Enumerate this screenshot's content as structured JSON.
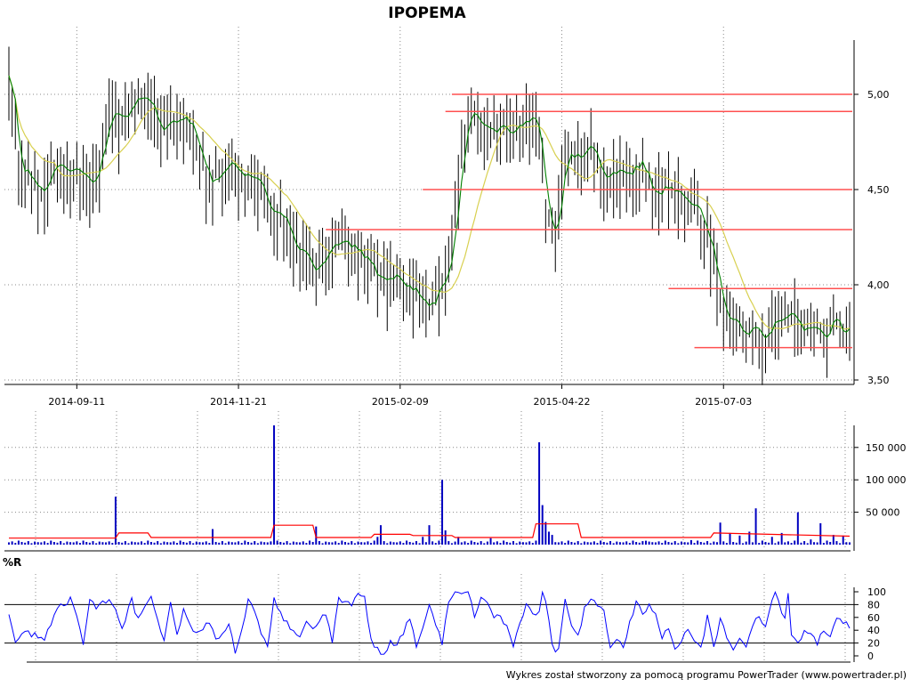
{
  "title": "IPOPEMA",
  "footer": "Wykres został stworzony za pomocą programu PowerTrader (www.powertrader.pl)",
  "colors": {
    "background": "#ffffff",
    "price_bar": "#000000",
    "ma_short": "#008000",
    "ma_long": "#d8d050",
    "level_line": "#ff5050",
    "volume_bar": "#0000c0",
    "volume_avg": "#ff0000",
    "wr_line": "#0000ff",
    "grid": "#888888",
    "axis": "#000000"
  },
  "chart_data": [
    {
      "panel": "price",
      "type": "ohlc",
      "title": "IPOPEMA",
      "x_ticks": [
        "2014-09-11",
        "2014-11-21",
        "2015-02-09",
        "2015-04-22",
        "2015-07-03"
      ],
      "x_tick_bar_index": [
        21,
        71,
        121,
        171,
        221
      ],
      "y_ticks": [
        "3,50",
        "4,00",
        "4,50",
        "5,00"
      ],
      "y_tick_values": [
        3.5,
        4.0,
        4.5,
        5.0
      ],
      "ylim": [
        3.5,
        5.3
      ],
      "grid": true,
      "anchors": [
        [
          0,
          5.1
        ],
        [
          1,
          4.95
        ],
        [
          3,
          4.62
        ],
        [
          6,
          4.56
        ],
        [
          10,
          4.48
        ],
        [
          14,
          4.58
        ],
        [
          20,
          4.58
        ],
        [
          25,
          4.55
        ],
        [
          28,
          4.65
        ],
        [
          31,
          4.92
        ],
        [
          34,
          4.82
        ],
        [
          38,
          4.95
        ],
        [
          42,
          4.95
        ],
        [
          46,
          4.85
        ],
        [
          50,
          4.86
        ],
        [
          55,
          4.88
        ],
        [
          58,
          4.75
        ],
        [
          62,
          4.55
        ],
        [
          66,
          4.62
        ],
        [
          70,
          4.6
        ],
        [
          74,
          4.55
        ],
        [
          78,
          4.5
        ],
        [
          82,
          4.38
        ],
        [
          86,
          4.32
        ],
        [
          88,
          4.22
        ],
        [
          92,
          4.15
        ],
        [
          96,
          4.1
        ],
        [
          100,
          4.22
        ],
        [
          105,
          4.22
        ],
        [
          110,
          4.14
        ],
        [
          115,
          4.04
        ],
        [
          120,
          4.0
        ],
        [
          124,
          3.98
        ],
        [
          128,
          3.92
        ],
        [
          131,
          3.88
        ],
        [
          134,
          4.0
        ],
        [
          137,
          4.2
        ],
        [
          140,
          4.72
        ],
        [
          142,
          4.88
        ],
        [
          145,
          4.88
        ],
        [
          150,
          4.82
        ],
        [
          155,
          4.82
        ],
        [
          160,
          4.88
        ],
        [
          163,
          4.88
        ],
        [
          166,
          4.4
        ],
        [
          169,
          4.28
        ],
        [
          172,
          4.65
        ],
        [
          176,
          4.72
        ],
        [
          180,
          4.75
        ],
        [
          184,
          4.55
        ],
        [
          188,
          4.58
        ],
        [
          192,
          4.58
        ],
        [
          196,
          4.62
        ],
        [
          200,
          4.48
        ],
        [
          204,
          4.55
        ],
        [
          208,
          4.4
        ],
        [
          212,
          4.45
        ],
        [
          215,
          4.28
        ],
        [
          218,
          4.18
        ],
        [
          220,
          3.92
        ],
        [
          223,
          3.82
        ],
        [
          226,
          3.75
        ],
        [
          230,
          3.75
        ],
        [
          233,
          3.68
        ],
        [
          236,
          3.8
        ],
        [
          240,
          3.82
        ],
        [
          244,
          3.8
        ],
        [
          248,
          3.78
        ],
        [
          252,
          3.75
        ],
        [
          255,
          3.8
        ],
        [
          258,
          3.76
        ],
        [
          260,
          3.82
        ]
      ],
      "horizontal_levels": [
        {
          "value": 5.0,
          "from_bar": 137
        },
        {
          "value": 4.91,
          "from_bar": 135
        },
        {
          "value": 4.5,
          "from_bar": 128
        },
        {
          "value": 4.29,
          "from_bar": 98
        },
        {
          "value": 3.98,
          "from_bar": 204
        },
        {
          "value": 3.67,
          "from_bar": 212
        }
      ],
      "moving_averages": [
        {
          "window": 3,
          "color_key": "ma_short"
        },
        {
          "window": 15,
          "color_key": "ma_long"
        }
      ]
    },
    {
      "panel": "volume",
      "type": "bar",
      "y_ticks": [
        "50 000",
        "100 000",
        "150 000"
      ],
      "y_tick_values": [
        50000,
        100000,
        150000
      ],
      "ylim": [
        0,
        180000
      ],
      "grid": true,
      "baseline_pattern": [
        3500,
        5000,
        2600,
        6200,
        4100,
        3000,
        5400,
        2200,
        4700,
        3800
      ],
      "spikes": [
        [
          33,
          74000
        ],
        [
          63,
          24000
        ],
        [
          82,
          184000
        ],
        [
          95,
          28000
        ],
        [
          114,
          12000
        ],
        [
          115,
          30000
        ],
        [
          128,
          12000
        ],
        [
          130,
          30000
        ],
        [
          134,
          100000
        ],
        [
          135,
          22000
        ],
        [
          139,
          12000
        ],
        [
          149,
          10000
        ],
        [
          164,
          158000
        ],
        [
          165,
          61000
        ],
        [
          166,
          35000
        ],
        [
          167,
          20000
        ],
        [
          168,
          15000
        ],
        [
          197,
          6000
        ],
        [
          211,
          7000
        ],
        [
          220,
          34000
        ],
        [
          223,
          18000
        ],
        [
          226,
          14000
        ],
        [
          229,
          20000
        ],
        [
          231,
          56000
        ],
        [
          236,
          12000
        ],
        [
          239,
          18000
        ],
        [
          244,
          50000
        ],
        [
          248,
          8000
        ],
        [
          251,
          33000
        ],
        [
          255,
          15000
        ],
        [
          258,
          14000
        ]
      ],
      "average_line": [
        [
          0,
          10000
        ],
        [
          33,
          10000
        ],
        [
          34,
          18000
        ],
        [
          43,
          18000
        ],
        [
          44,
          11000
        ],
        [
          81,
          11000
        ],
        [
          82,
          30000
        ],
        [
          94,
          30000
        ],
        [
          95,
          11000
        ],
        [
          112,
          11000
        ],
        [
          113,
          16000
        ],
        [
          124,
          16000
        ],
        [
          125,
          14000
        ],
        [
          137,
          14000
        ],
        [
          138,
          11000
        ],
        [
          162,
          11000
        ],
        [
          163,
          32000
        ],
        [
          176,
          32000
        ],
        [
          177,
          11000
        ],
        [
          217,
          11000
        ],
        [
          218,
          18000
        ],
        [
          260,
          13000
        ]
      ]
    },
    {
      "panel": "williams_r",
      "type": "line",
      "title": "%R",
      "y_ticks": [
        "0",
        "20",
        "40",
        "60",
        "80",
        "100"
      ],
      "y_tick_values": [
        0,
        20,
        40,
        60,
        80,
        100
      ],
      "ylim": [
        0,
        100
      ],
      "reference_lines": [
        20,
        80
      ],
      "anchors": [
        [
          0,
          68
        ],
        [
          2,
          25
        ],
        [
          5,
          38
        ],
        [
          8,
          32
        ],
        [
          11,
          28
        ],
        [
          13,
          52
        ],
        [
          16,
          78
        ],
        [
          19,
          88
        ],
        [
          21,
          60
        ],
        [
          23,
          20
        ],
        [
          25,
          92
        ],
        [
          27,
          72
        ],
        [
          29,
          82
        ],
        [
          31,
          86
        ],
        [
          33,
          70
        ],
        [
          35,
          40
        ],
        [
          38,
          88
        ],
        [
          40,
          55
        ],
        [
          42,
          80
        ],
        [
          44,
          88
        ],
        [
          46,
          52
        ],
        [
          48,
          22
        ],
        [
          50,
          80
        ],
        [
          52,
          32
        ],
        [
          54,
          70
        ],
        [
          56,
          48
        ],
        [
          58,
          38
        ],
        [
          60,
          40
        ],
        [
          62,
          55
        ],
        [
          64,
          28
        ],
        [
          66,
          32
        ],
        [
          68,
          52
        ],
        [
          70,
          4
        ],
        [
          72,
          45
        ],
        [
          74,
          85
        ],
        [
          76,
          70
        ],
        [
          78,
          32
        ],
        [
          80,
          12
        ],
        [
          82,
          88
        ],
        [
          84,
          68
        ],
        [
          86,
          50
        ],
        [
          88,
          42
        ],
        [
          90,
          28
        ],
        [
          92,
          58
        ],
        [
          94,
          40
        ],
        [
          96,
          52
        ],
        [
          98,
          66
        ],
        [
          100,
          20
        ],
        [
          102,
          90
        ],
        [
          104,
          82
        ],
        [
          106,
          80
        ],
        [
          108,
          95
        ],
        [
          110,
          92
        ],
        [
          112,
          22
        ],
        [
          114,
          12
        ],
        [
          116,
          0
        ],
        [
          118,
          24
        ],
        [
          120,
          18
        ],
        [
          122,
          35
        ],
        [
          124,
          62
        ],
        [
          126,
          12
        ],
        [
          128,
          40
        ],
        [
          130,
          80
        ],
        [
          132,
          50
        ],
        [
          134,
          20
        ],
        [
          136,
          88
        ],
        [
          138,
          100
        ],
        [
          140,
          100
        ],
        [
          142,
          100
        ],
        [
          144,
          65
        ],
        [
          146,
          90
        ],
        [
          148,
          85
        ],
        [
          150,
          60
        ],
        [
          152,
          62
        ],
        [
          154,
          45
        ],
        [
          156,
          12
        ],
        [
          158,
          48
        ],
        [
          160,
          85
        ],
        [
          162,
          62
        ],
        [
          164,
          72
        ],
        [
          165,
          100
        ],
        [
          166,
          88
        ],
        [
          168,
          18
        ],
        [
          169,
          4
        ],
        [
          170,
          12
        ],
        [
          172,
          88
        ],
        [
          174,
          50
        ],
        [
          176,
          30
        ],
        [
          178,
          72
        ],
        [
          180,
          92
        ],
        [
          182,
          80
        ],
        [
          184,
          72
        ],
        [
          186,
          10
        ],
        [
          188,
          30
        ],
        [
          190,
          8
        ],
        [
          192,
          50
        ],
        [
          194,
          85
        ],
        [
          196,
          68
        ],
        [
          198,
          80
        ],
        [
          200,
          64
        ],
        [
          202,
          28
        ],
        [
          204,
          44
        ],
        [
          206,
          10
        ],
        [
          208,
          22
        ],
        [
          210,
          40
        ],
        [
          212,
          22
        ],
        [
          214,
          12
        ],
        [
          216,
          60
        ],
        [
          218,
          12
        ],
        [
          220,
          60
        ],
        [
          222,
          24
        ],
        [
          224,
          8
        ],
        [
          226,
          30
        ],
        [
          228,
          18
        ],
        [
          230,
          50
        ],
        [
          232,
          58
        ],
        [
          234,
          48
        ],
        [
          236,
          82
        ],
        [
          237,
          100
        ],
        [
          238,
          82
        ],
        [
          240,
          58
        ],
        [
          241,
          100
        ],
        [
          242,
          28
        ],
        [
          244,
          20
        ],
        [
          246,
          36
        ],
        [
          248,
          30
        ],
        [
          250,
          20
        ],
        [
          252,
          42
        ],
        [
          254,
          32
        ],
        [
          256,
          60
        ],
        [
          258,
          50
        ],
        [
          260,
          48
        ]
      ]
    }
  ]
}
